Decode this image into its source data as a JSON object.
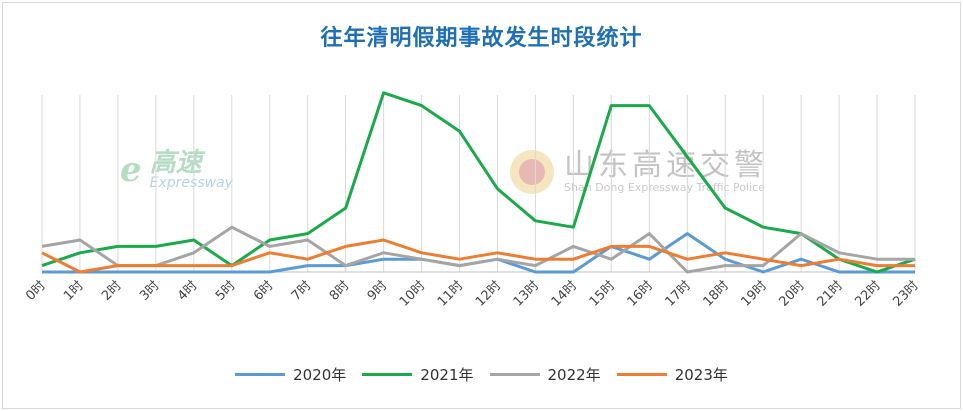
{
  "chart_data": {
    "type": "line",
    "title": "往年清明假期事故发生时段统计",
    "categories": [
      "0时",
      "1时",
      "2时",
      "3时",
      "4时",
      "5时",
      "6时",
      "7时",
      "8时",
      "9时",
      "10时",
      "11时",
      "12时",
      "13时",
      "14时",
      "15时",
      "16时",
      "17时",
      "18时",
      "19时",
      "20时",
      "21时",
      "22时",
      "23时"
    ],
    "ylim": [
      0,
      15
    ],
    "grid": "vertical",
    "legend": "bottom",
    "series": [
      {
        "name": "2020年",
        "color": "#5b9bd5",
        "values": [
          0,
          0,
          0,
          0,
          0,
          0,
          0,
          0.5,
          0.5,
          1,
          1,
          0.5,
          1,
          0,
          0,
          2,
          1,
          3,
          1,
          0,
          1,
          0,
          0,
          0
        ]
      },
      {
        "name": "2021年",
        "color": "#1aaa4a",
        "values": [
          0.5,
          1.5,
          2,
          2,
          2.5,
          0.5,
          2.5,
          3,
          5,
          14,
          13,
          11,
          6.5,
          4,
          3.5,
          13,
          13,
          9,
          5,
          3.5,
          3,
          1,
          0,
          1
        ]
      },
      {
        "name": "2022年",
        "color": "#a5a5a5",
        "values": [
          2,
          2.5,
          0.5,
          0.5,
          1.5,
          3.5,
          2,
          2.5,
          0.5,
          1.5,
          1,
          0.5,
          1,
          0.5,
          2,
          1,
          3,
          0,
          0.5,
          0.5,
          3,
          1.5,
          1,
          1
        ]
      },
      {
        "name": "2023年",
        "color": "#ed7d31",
        "values": [
          1.5,
          0,
          0.5,
          0.5,
          0.5,
          0.5,
          1.5,
          1,
          2,
          2.5,
          1.5,
          1,
          1.5,
          1,
          1,
          2,
          2,
          1,
          1.5,
          1,
          0.5,
          1,
          0.5,
          0.5
        ]
      }
    ]
  },
  "watermarks": {
    "left_logo": "ℯ",
    "left_main": "高速",
    "left_sub": "Expressway",
    "right_main": "山东高速交警",
    "right_sub": "Shan Dong Expressway Traffic Police"
  }
}
